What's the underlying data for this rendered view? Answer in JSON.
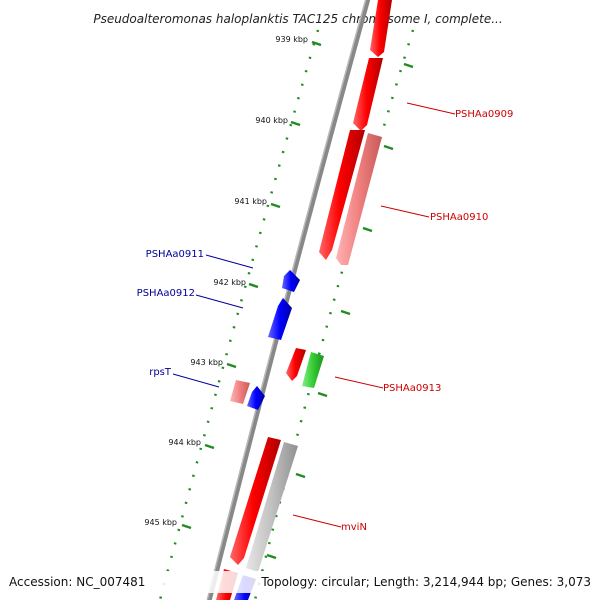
{
  "title": "Pseudoalteromonas haloplanktis TAC125 chromosome I, complete...",
  "footer": {
    "accession": "Accession: NC_007481",
    "summary": "Topology: circular; Length: 3,214,944 bp; Genes: 3,073"
  },
  "ticks": [
    {
      "label": "939 kbp"
    },
    {
      "label": "940 kbp"
    },
    {
      "label": "941 kbp"
    },
    {
      "label": "942 kbp"
    },
    {
      "label": "943 kbp"
    },
    {
      "label": "944 kbp"
    },
    {
      "label": "945 kbp"
    }
  ],
  "genes": [
    {
      "label": "PSHAa0909",
      "color": "#cc0000"
    },
    {
      "label": "PSHAa0910",
      "color": "#cc0000"
    },
    {
      "label": "PSHAa0911",
      "color": "#000099"
    },
    {
      "label": "PSHAa0912",
      "color": "#000099"
    },
    {
      "label": "rpsT",
      "color": "#000099"
    },
    {
      "label": "PSHAa0913",
      "color": "#cc0000"
    },
    {
      "label": "mviN",
      "color": "#cc0000"
    }
  ],
  "colors": {
    "cds_forward": "#ff0000",
    "cds_pink": "#f08080",
    "cds_reverse": "#0000ff",
    "rna_green": "#33cc33",
    "grey_feature": "#c0c0c0",
    "backbone": "#888888",
    "tick_green": "#228b22"
  }
}
